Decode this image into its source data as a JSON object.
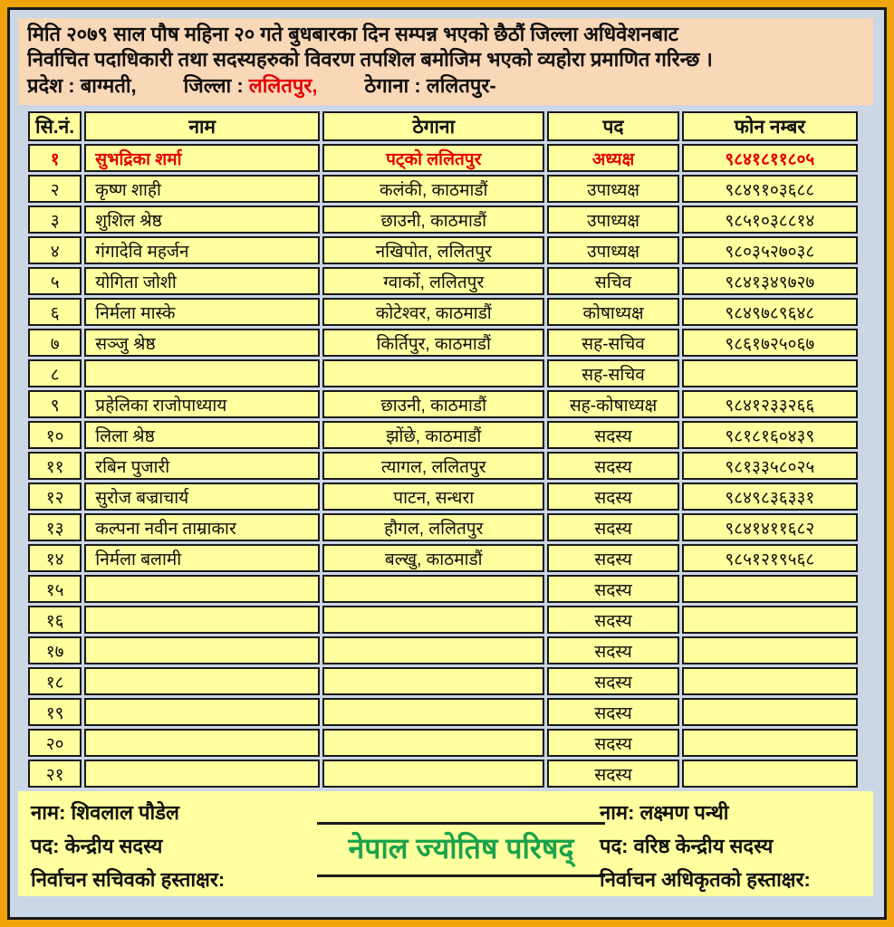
{
  "colors": {
    "gold_border": "#eea40a",
    "frame_background": "#ccd7e5",
    "header_background": "#f9d8b8",
    "cell_background": "#feff9e",
    "accent_red": "#e60000",
    "accent_green": "#1aa34b"
  },
  "header": {
    "line1": "मिति २०७९ साल पौष महिना २० गते बुधबारका दिन सम्पन्न भएको छैठौं जिल्ला अधिवेशनबाट",
    "line2": "निर्वाचित पदाधिकारी तथा सदस्यहरुको विवरण तपशिल बमोजिम भएको व्यहोरा प्रमाणित गरिन्छ ।",
    "province_label": "प्रदेश : ",
    "province_value": "बाग्मती,",
    "district_label": "जिल्ला : ",
    "district_value": "ललितपुर,",
    "address_label": "ठेगाना : ",
    "address_value": "ललितपुर-"
  },
  "table": {
    "columns": [
      "सि.नं.",
      "नाम",
      "ठेगाना",
      "पद",
      "फोन नम्बर"
    ],
    "rows": [
      {
        "sn": "१",
        "name": "सुभद्रिका शर्मा",
        "address": "पट्को ललितपुर",
        "position": "अध्यक्ष",
        "phone": "९८४१८११८०५",
        "highlight": true
      },
      {
        "sn": "२",
        "name": "कृष्ण शाही",
        "address": "कलंकी, काठमाडौं",
        "position": "उपाध्यक्ष",
        "phone": "९८४९१०३६८८"
      },
      {
        "sn": "३",
        "name": "शुशिल श्रेष्ठ",
        "address": "छाउनी, काठमाडौं",
        "position": "उपाध्यक्ष",
        "phone": "९८५१०३८८१४"
      },
      {
        "sn": "४",
        "name": "गंगादेवि महर्जन",
        "address": "नखिपोत, ललितपुर",
        "position": "उपाध्यक्ष",
        "phone": "९८०३५२७०३८"
      },
      {
        "sn": "५",
        "name": "योगिता जोशी",
        "address": "ग्वार्को, ललितपुर",
        "position": "सचिव",
        "phone": "९८४१३४९७२७"
      },
      {
        "sn": "६",
        "name": "निर्मला मास्के",
        "address": "कोटेश्वर, काठमाडौं",
        "position": "कोषाध्यक्ष",
        "phone": "९८४९७८९६४८"
      },
      {
        "sn": "७",
        "name": "सञ्जु श्रेष्ठ",
        "address": "किर्तिपुर, काठमाडौं",
        "position": "सह-सचिव",
        "phone": "९८६१७२५०६७"
      },
      {
        "sn": "८",
        "name": "",
        "address": "",
        "position": "सह-सचिव",
        "phone": ""
      },
      {
        "sn": "९",
        "name": "प्रहेलिका राजोपाध्याय",
        "address": "छाउनी, काठमाडौं",
        "position": "सह-कोषाध्यक्ष",
        "phone": "९८४१२३३२६६"
      },
      {
        "sn": "१०",
        "name": "लिला श्रेष्ठ",
        "address": "झोंछे, काठमाडौं",
        "position": "सदस्य",
        "phone": "९८१८१६०४३९"
      },
      {
        "sn": "११",
        "name": "रबिन पुजारी",
        "address": "त्यागल, ललितपुर",
        "position": "सदस्य",
        "phone": "९८१३३५८०२५"
      },
      {
        "sn": "१२",
        "name": "सुरोज बज्राचार्य",
        "address": "पाटन, सन्धरा",
        "position": "सदस्य",
        "phone": "९८४९८३६३३१"
      },
      {
        "sn": "१३",
        "name": "कल्पना नवीन ताम्राकार",
        "address": "हौगल, ललितपुर",
        "position": "सदस्य",
        "phone": "९८४१४११६८२"
      },
      {
        "sn": "१४",
        "name": "निर्मला बलामी",
        "address": "बल्खु, काठमाडौं",
        "position": "सदस्य",
        "phone": "९८५१२१९५६८"
      },
      {
        "sn": "१५",
        "name": "",
        "address": "",
        "position": "सदस्य",
        "phone": ""
      },
      {
        "sn": "१६",
        "name": "",
        "address": "",
        "position": "सदस्य",
        "phone": ""
      },
      {
        "sn": "१७",
        "name": "",
        "address": "",
        "position": "सदस्य",
        "phone": ""
      },
      {
        "sn": "१८",
        "name": "",
        "address": "",
        "position": "सदस्य",
        "phone": ""
      },
      {
        "sn": "१९",
        "name": "",
        "address": "",
        "position": "सदस्य",
        "phone": ""
      },
      {
        "sn": "२०",
        "name": "",
        "address": "",
        "position": "सदस्य",
        "phone": ""
      },
      {
        "sn": "२१",
        "name": "",
        "address": "",
        "position": "सदस्य",
        "phone": ""
      }
    ]
  },
  "footer": {
    "left": {
      "lines": [
        "नाम: शिवलाल पौडेल",
        "पद: केन्द्रीय सदस्य",
        "निर्वाचन सचिवको हस्ताक्षर:"
      ]
    },
    "organization": "नेपाल ज्योतिष परिषद्",
    "right": {
      "lines": [
        "नाम: लक्ष्मण पन्थी",
        "पद:  वरिष्ठ केन्द्रीय सदस्य",
        "निर्वाचन अधिकृतको हस्ताक्षर:"
      ]
    }
  }
}
